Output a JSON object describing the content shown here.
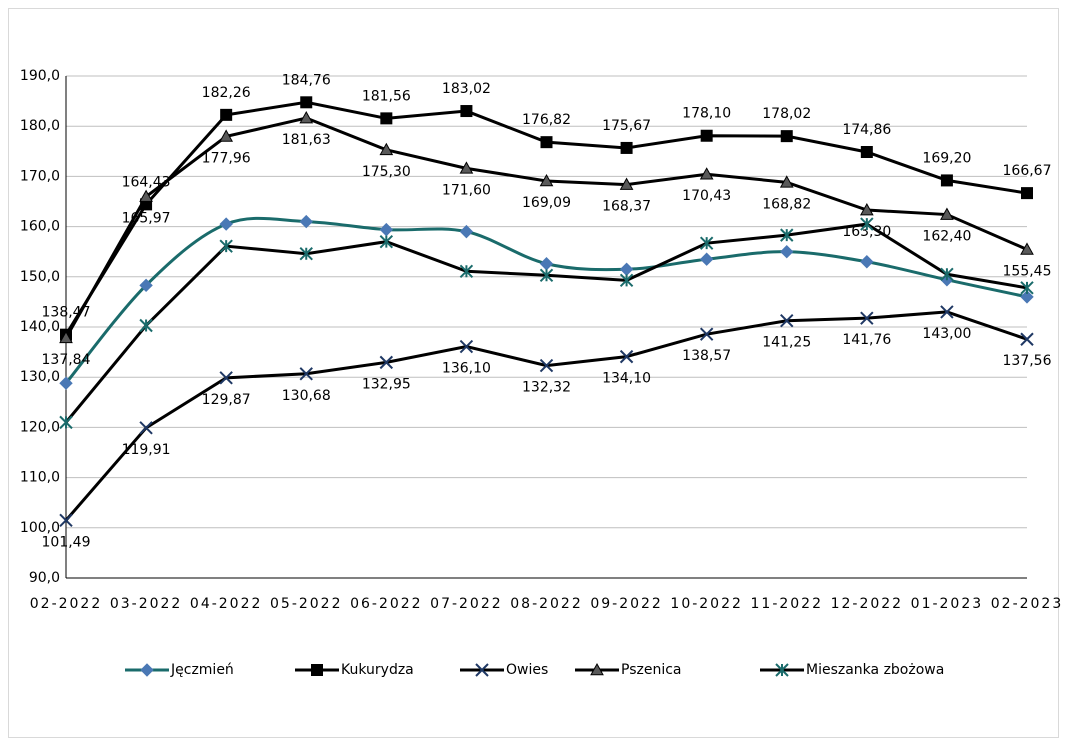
{
  "chart_data": {
    "type": "line",
    "categories": [
      "02-2022",
      "03-2022",
      "04-2022",
      "05-2022",
      "06-2022",
      "07-2022",
      "08-2022",
      "09-2022",
      "10-2022",
      "11-2022",
      "12-2022",
      "01-2023",
      "02-2023"
    ],
    "ylim": [
      90,
      190
    ],
    "yticks": [
      {
        "value": 90,
        "label": "90,0"
      },
      {
        "value": 100,
        "label": "100,0"
      },
      {
        "value": 110,
        "label": "110,0"
      },
      {
        "value": 120,
        "label": "120,0"
      },
      {
        "value": 130,
        "label": "130,0"
      },
      {
        "value": 140,
        "label": "140,0"
      },
      {
        "value": 150,
        "label": "150,0"
      },
      {
        "value": 160,
        "label": "160,0"
      },
      {
        "value": 170,
        "label": "170,0"
      },
      {
        "value": 180,
        "label": "180,0"
      },
      {
        "value": 190,
        "label": "190,0"
      }
    ],
    "grid": true,
    "legend": "bottom",
    "series": [
      {
        "name": "Jęczmień",
        "color": "#1a6b6b",
        "marker": "diamond",
        "marker_color": "#4a78b5",
        "smooth": true,
        "values": [
          128.8,
          148.3,
          160.5,
          161.0,
          159.4,
          159.0,
          152.6,
          151.5,
          153.5,
          155.0,
          153.0,
          149.4,
          146.0
        ]
      },
      {
        "name": "Kukurydza",
        "color": "#000000",
        "marker": "square",
        "marker_color": "#000000",
        "label_side": "above",
        "values": [
          138.47,
          164.43,
          182.26,
          184.76,
          181.56,
          183.02,
          176.82,
          175.67,
          178.1,
          178.02,
          174.86,
          169.2,
          166.67
        ],
        "value_labels": [
          "138,47",
          "164,43",
          "182,26",
          "184,76",
          "181,56",
          "183,02",
          "176,82",
          "175,67",
          "178,10",
          "178,02",
          "174,86",
          "169,20",
          "166,67"
        ]
      },
      {
        "name": "Owies",
        "color": "#000000",
        "marker": "x",
        "marker_color": "#1f3864",
        "label_side": "below",
        "values": [
          101.49,
          119.91,
          129.87,
          130.68,
          132.95,
          136.1,
          132.32,
          134.1,
          138.57,
          141.25,
          141.76,
          143.0,
          137.56
        ],
        "value_labels": [
          "101,49",
          "119,91",
          "129,87",
          "130,68",
          "132,95",
          "136,10",
          "132,32",
          "134,10",
          "138,57",
          "141,25",
          "141,76",
          "143,00",
          "137,56"
        ]
      },
      {
        "name": "Pszenica",
        "color": "#000000",
        "marker": "triangle",
        "marker_color": "#595959",
        "label_side": "below",
        "values": [
          137.84,
          165.97,
          177.96,
          181.63,
          175.3,
          171.6,
          169.09,
          168.37,
          170.43,
          168.82,
          163.3,
          162.4,
          155.45
        ],
        "value_labels": [
          "137,84",
          "165,97",
          "177,96",
          "181,63",
          "175,30",
          "171,60",
          "169,09",
          "168,37",
          "170,43",
          "168,82",
          "163,30",
          "162,40",
          "155,45"
        ]
      },
      {
        "name": "Mieszanka zbożowa",
        "color": "#000000",
        "marker": "star",
        "marker_color": "#1a6b6b",
        "values": [
          121.0,
          140.3,
          156.1,
          154.6,
          157.0,
          151.1,
          150.3,
          149.3,
          156.7,
          158.3,
          160.5,
          150.5,
          147.8
        ]
      }
    ]
  }
}
